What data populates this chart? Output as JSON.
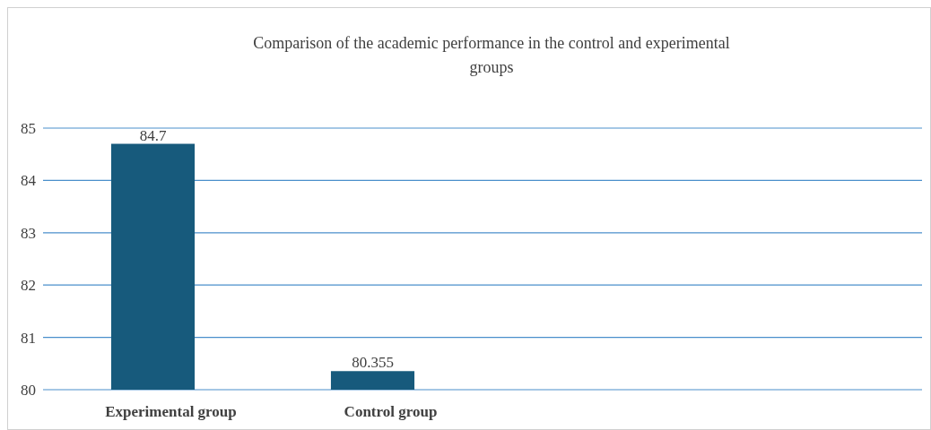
{
  "chart_data": {
    "type": "bar",
    "title": "Comparison of the academic performance in the control and experimental groups",
    "categories": [
      "Experimental group",
      "Control group",
      null,
      null
    ],
    "values": [
      84.7,
      80.355,
      null,
      null
    ],
    "color": "#175a7c",
    "ylim": [
      80,
      85
    ],
    "yticks": [
      80,
      81,
      82,
      83,
      84,
      85
    ],
    "grid": "y",
    "data_labels": true
  }
}
